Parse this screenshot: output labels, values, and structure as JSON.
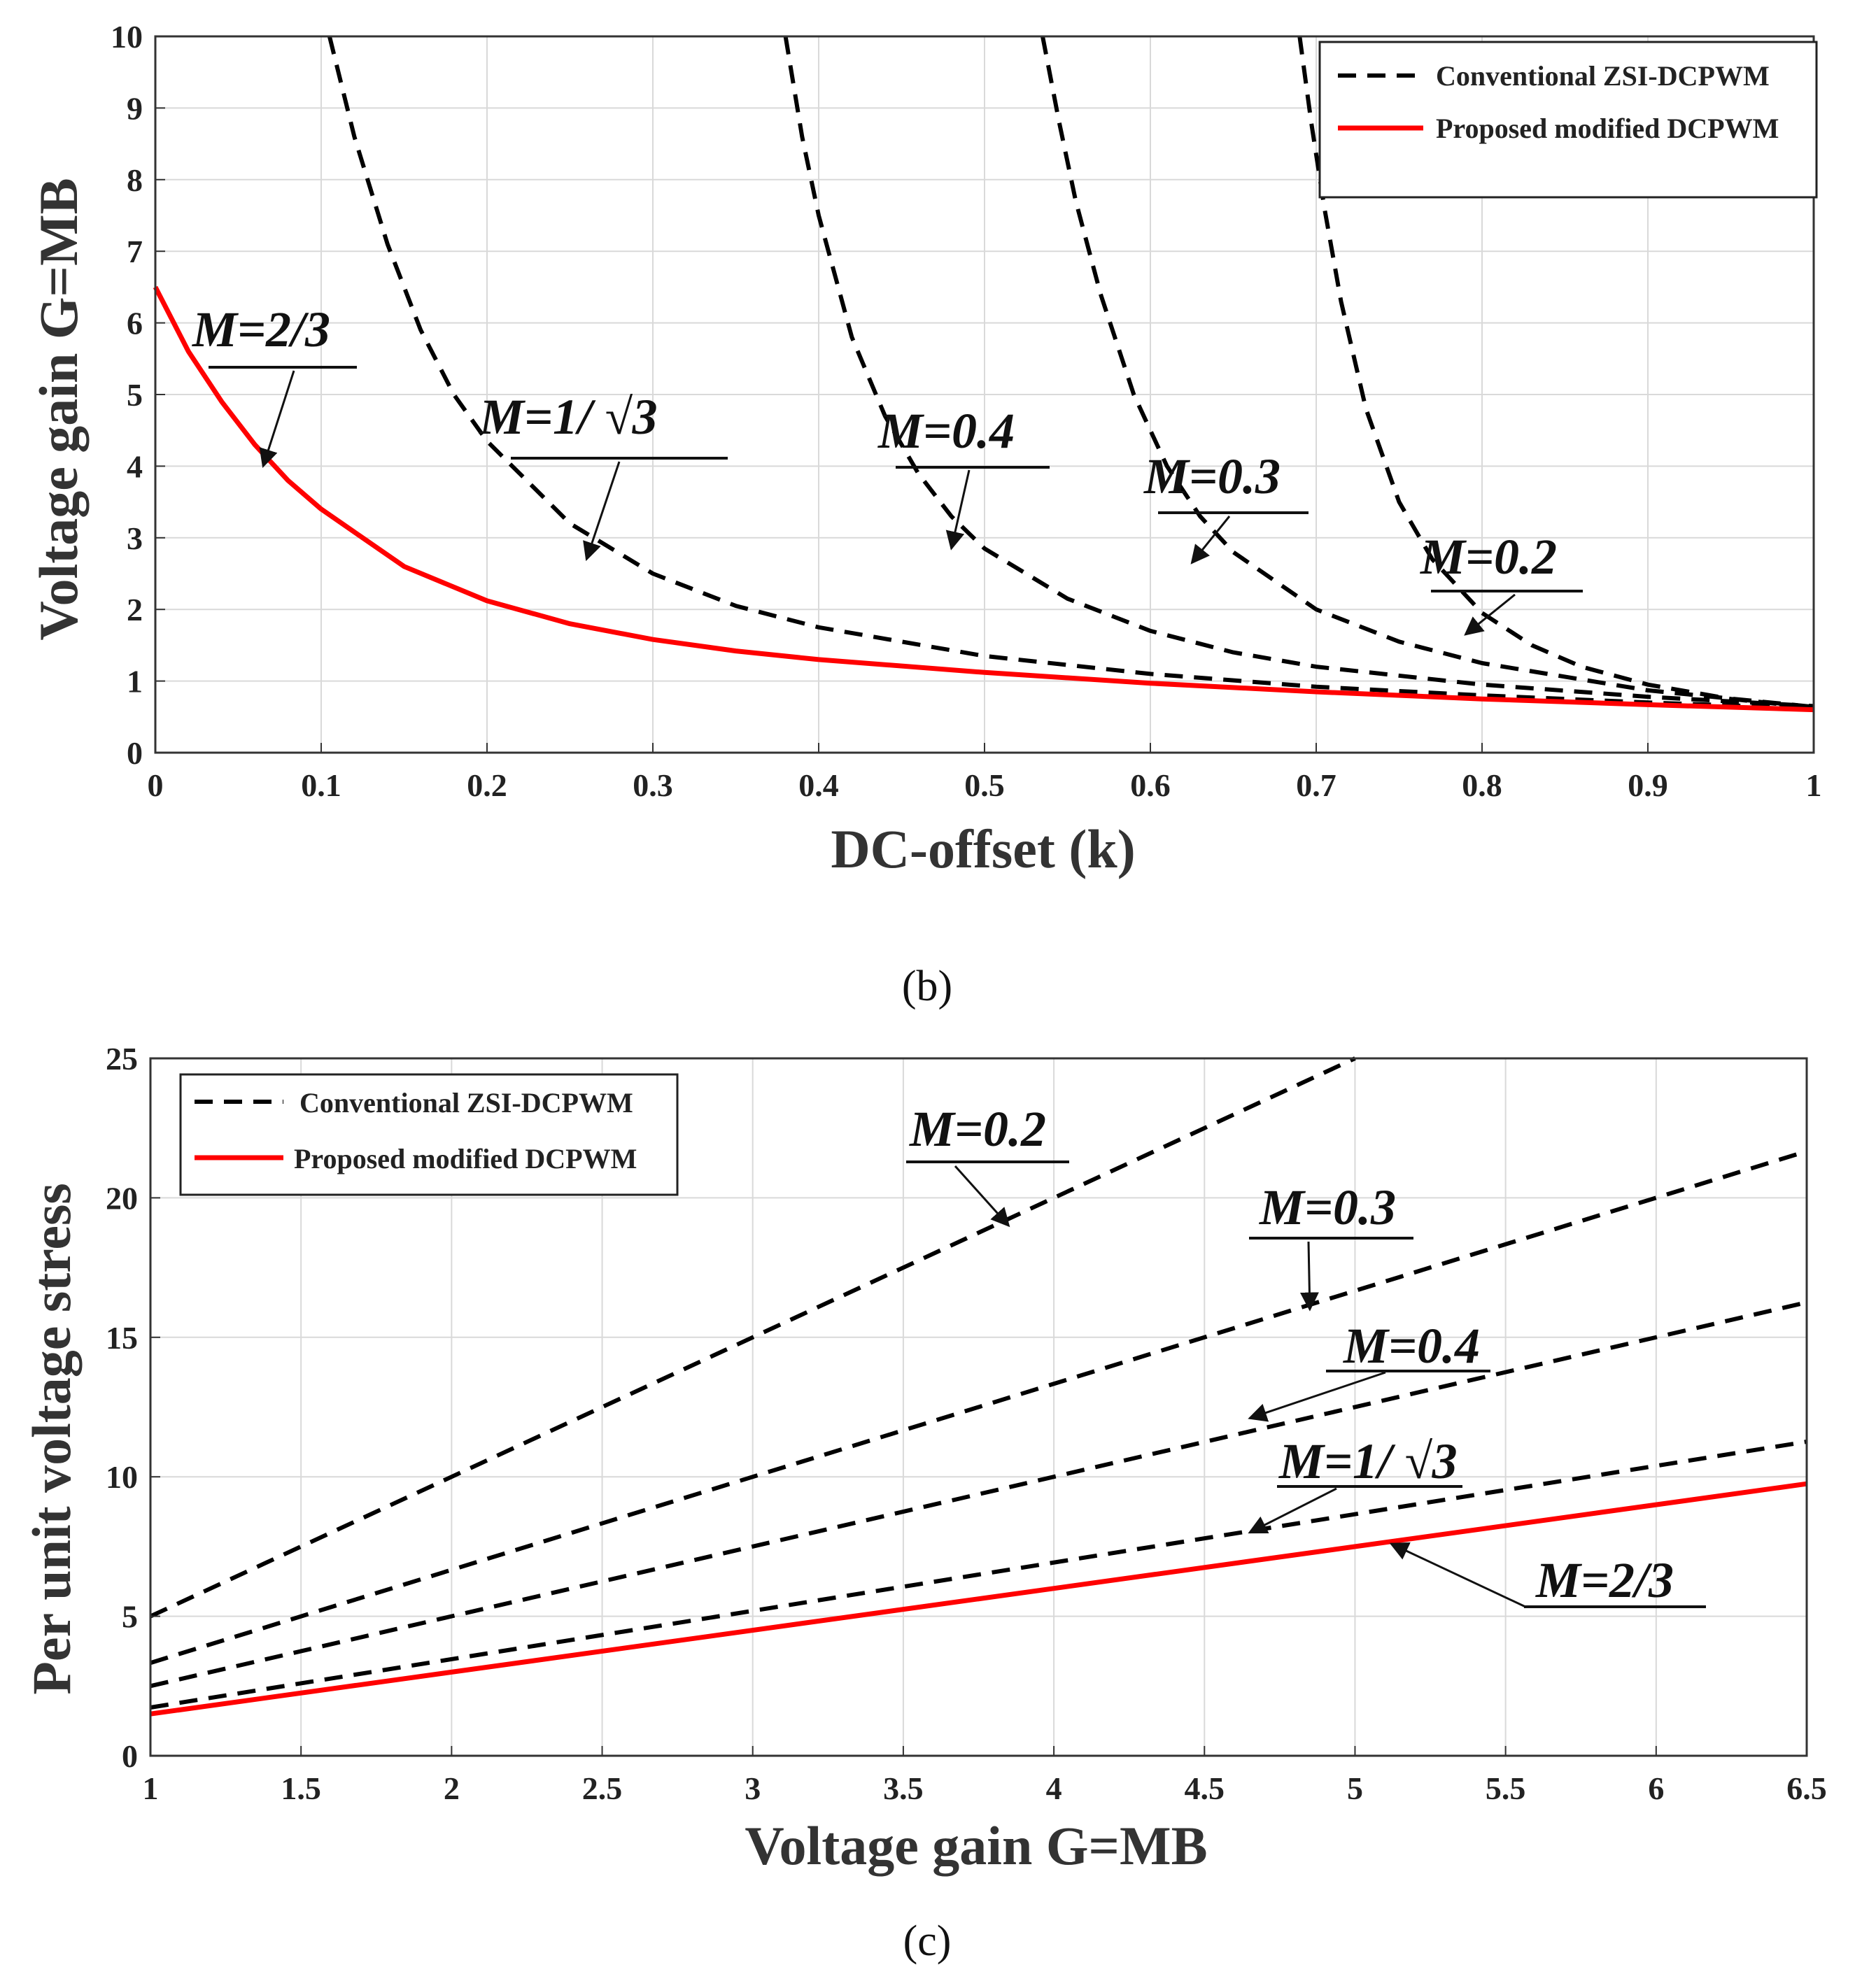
{
  "colors": {
    "conventional": "#000000",
    "proposed": "#ff0000",
    "grid": "#d9d9d9"
  },
  "legend": {
    "conventional": "Conventional ZSI-DCPWM",
    "proposed": "Proposed modified DCPWM"
  },
  "chart_data": [
    {
      "type": "line",
      "panel": "(b)",
      "caption": "(b)",
      "title": "",
      "xlabel": "DC-offset (k)",
      "ylabel": "Voltage gain G=MB",
      "xlim": [
        0,
        1
      ],
      "ylim": [
        0,
        10
      ],
      "xticks": [
        "0",
        "0.1",
        "0.2",
        "0.3",
        "0.4",
        "0.5",
        "0.6",
        "0.7",
        "0.8",
        "0.9",
        "1"
      ],
      "yticks": [
        "0",
        "1",
        "2",
        "3",
        "4",
        "5",
        "6",
        "7",
        "8",
        "9",
        "10"
      ],
      "grid": true,
      "legend_position": "top-right",
      "series": [
        {
          "name": "Proposed modified DCPWM",
          "M": 0.6667,
          "style": "solid",
          "color": "red",
          "x": [
            0,
            0.02,
            0.04,
            0.06,
            0.08,
            0.1,
            0.15,
            0.2,
            0.25,
            0.3,
            0.35,
            0.4,
            0.5,
            0.6,
            0.7,
            0.8,
            0.9,
            1.0
          ],
          "y": [
            6.5,
            5.6,
            4.9,
            4.3,
            3.8,
            3.4,
            2.6,
            2.12,
            1.8,
            1.58,
            1.42,
            1.3,
            1.12,
            0.97,
            0.85,
            0.75,
            0.67,
            0.6
          ]
        },
        {
          "name": "M=1/√3",
          "M": 0.5774,
          "style": "dashed",
          "color": "black",
          "x": [
            0.105,
            0.12,
            0.14,
            0.16,
            0.18,
            0.2,
            0.25,
            0.3,
            0.35,
            0.4,
            0.5,
            0.6,
            0.7,
            0.8,
            0.9,
            1.0
          ],
          "y": [
            10,
            8.6,
            7.1,
            5.9,
            5.0,
            4.35,
            3.2,
            2.5,
            2.05,
            1.75,
            1.35,
            1.1,
            0.92,
            0.8,
            0.7,
            0.62
          ]
        },
        {
          "name": "M=0.4",
          "M": 0.4,
          "style": "dashed",
          "color": "black",
          "x": [
            0.38,
            0.39,
            0.4,
            0.42,
            0.44,
            0.46,
            0.48,
            0.5,
            0.55,
            0.6,
            0.65,
            0.7,
            0.8,
            0.9,
            1.0
          ],
          "y": [
            10,
            8.6,
            7.5,
            5.8,
            4.7,
            3.9,
            3.3,
            2.85,
            2.15,
            1.7,
            1.4,
            1.2,
            0.95,
            0.78,
            0.65
          ]
        },
        {
          "name": "M=0.3",
          "M": 0.3,
          "style": "dashed",
          "color": "black",
          "x": [
            0.535,
            0.545,
            0.555,
            0.57,
            0.59,
            0.61,
            0.63,
            0.65,
            0.7,
            0.75,
            0.8,
            0.9,
            1.0
          ],
          "y": [
            10,
            8.8,
            7.7,
            6.4,
            5.0,
            4.0,
            3.3,
            2.8,
            2.0,
            1.55,
            1.25,
            0.87,
            0.64
          ]
        },
        {
          "name": "M=0.2",
          "M": 0.2,
          "style": "dashed",
          "color": "black",
          "x": [
            0.69,
            0.697,
            0.705,
            0.715,
            0.73,
            0.75,
            0.77,
            0.8,
            0.83,
            0.86,
            0.9,
            0.95,
            1.0
          ],
          "y": [
            10,
            8.8,
            7.6,
            6.3,
            4.8,
            3.5,
            2.7,
            1.95,
            1.5,
            1.2,
            0.95,
            0.75,
            0.63
          ]
        }
      ],
      "annotations": [
        {
          "label": "M=2/3",
          "at": [
            0.065,
            4.0
          ]
        },
        {
          "label": "M=1/ √3",
          "at": [
            0.26,
            2.7
          ]
        },
        {
          "label": "M=0.4",
          "at": [
            0.48,
            2.85
          ]
        },
        {
          "label": "M=0.3",
          "at": [
            0.625,
            2.65
          ]
        },
        {
          "label": "M=0.2",
          "at": [
            0.79,
            1.65
          ]
        }
      ]
    },
    {
      "type": "line",
      "panel": "(c)",
      "caption": "(c)",
      "title": "",
      "xlabel": "Voltage gain G=MB",
      "ylabel": "Per unit voltage stress",
      "xlim": [
        1,
        6.5
      ],
      "ylim": [
        0,
        25
      ],
      "xticks": [
        "1",
        "1.5",
        "2",
        "2.5",
        "3",
        "3.5",
        "4",
        "4.5",
        "5",
        "5.5",
        "6",
        "6.5"
      ],
      "yticks": [
        "0",
        "5",
        "10",
        "15",
        "20",
        "25"
      ],
      "grid": true,
      "legend_position": "top-left",
      "series": [
        {
          "name": "Proposed modified DCPWM",
          "M": 0.6667,
          "style": "solid",
          "color": "red",
          "x": [
            1,
            6.5
          ],
          "y": [
            1.5,
            9.75
          ]
        },
        {
          "name": "M=1/√3",
          "M": 0.5774,
          "style": "dashed",
          "color": "black",
          "x": [
            1,
            6.5
          ],
          "y": [
            1.73,
            11.26
          ]
        },
        {
          "name": "M=0.4",
          "M": 0.4,
          "style": "dashed",
          "color": "black",
          "x": [
            1,
            6.5
          ],
          "y": [
            2.5,
            16.25
          ]
        },
        {
          "name": "M=0.3",
          "M": 0.3,
          "style": "dashed",
          "color": "black",
          "x": [
            1,
            6.5
          ],
          "y": [
            3.33,
            21.67
          ]
        },
        {
          "name": "M=0.2",
          "M": 0.2,
          "style": "dashed",
          "color": "black",
          "x": [
            1,
            5.0
          ],
          "y": [
            5.0,
            25.0
          ]
        }
      ],
      "annotations": [
        {
          "label": "M=0.2",
          "at": [
            3.85,
            19.0
          ]
        },
        {
          "label": "M=0.3",
          "at": [
            4.85,
            16.0
          ]
        },
        {
          "label": "M=0.4",
          "at": [
            4.65,
            12.1
          ]
        },
        {
          "label": "M=1/ √3",
          "at": [
            4.65,
            8.0
          ]
        },
        {
          "label": "M=2/3",
          "at": [
            5.12,
            7.6
          ]
        }
      ]
    }
  ]
}
